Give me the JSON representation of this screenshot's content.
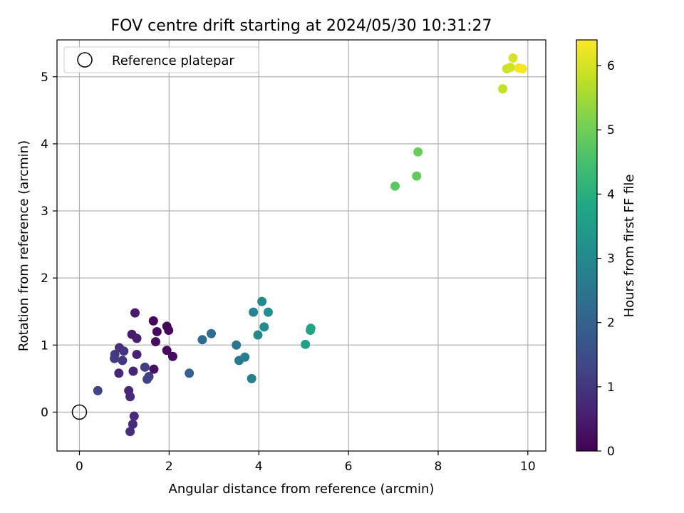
{
  "chart_data": {
    "type": "scatter",
    "title": "FOV centre drift starting at 2024/05/30 10:31:27",
    "xlabel": "Angular distance from reference (arcmin)",
    "ylabel": "Rotation from reference (arcmin)",
    "xlim": [
      -0.5,
      10.4
    ],
    "ylim": [
      -0.58,
      5.55
    ],
    "xticks": [
      0,
      2,
      4,
      6,
      8,
      10
    ],
    "yticks": [
      0,
      1,
      2,
      3,
      4,
      5
    ],
    "grid": true,
    "legend": {
      "position": "top-left",
      "entries": [
        "Reference platepar"
      ]
    },
    "reference_point": {
      "x": 0,
      "y": 0,
      "label": "Reference platepar"
    },
    "colorbar": {
      "label": "Hours from first FF file",
      "colormap": "viridis",
      "range": [
        0,
        6.4
      ],
      "ticks": [
        0,
        1,
        2,
        3,
        4,
        5,
        6
      ]
    },
    "points": [
      {
        "x": 1.65,
        "y": 1.36,
        "h": 0.05
      },
      {
        "x": 1.95,
        "y": 1.28,
        "h": 0.1
      },
      {
        "x": 1.99,
        "y": 1.22,
        "h": 0.12
      },
      {
        "x": 1.73,
        "y": 1.2,
        "h": 0.15
      },
      {
        "x": 1.7,
        "y": 1.05,
        "h": 0.18
      },
      {
        "x": 1.95,
        "y": 0.92,
        "h": 0.2
      },
      {
        "x": 2.08,
        "y": 0.83,
        "h": 0.22
      },
      {
        "x": 1.66,
        "y": 0.64,
        "h": 0.3
      },
      {
        "x": 1.24,
        "y": 1.48,
        "h": 0.45
      },
      {
        "x": 1.17,
        "y": 1.16,
        "h": 0.5
      },
      {
        "x": 1.28,
        "y": 1.1,
        "h": 0.55
      },
      {
        "x": 1.28,
        "y": 0.86,
        "h": 0.6
      },
      {
        "x": 1.2,
        "y": 0.61,
        "h": 0.65
      },
      {
        "x": 0.88,
        "y": 0.58,
        "h": 0.7
      },
      {
        "x": 1.1,
        "y": 0.32,
        "h": 0.72
      },
      {
        "x": 1.13,
        "y": 0.23,
        "h": 0.75
      },
      {
        "x": 1.22,
        "y": -0.06,
        "h": 0.8
      },
      {
        "x": 1.19,
        "y": -0.18,
        "h": 0.82
      },
      {
        "x": 1.13,
        "y": -0.29,
        "h": 0.85
      },
      {
        "x": 0.89,
        "y": 0.96,
        "h": 0.9
      },
      {
        "x": 0.99,
        "y": 0.91,
        "h": 0.95
      },
      {
        "x": 0.96,
        "y": 0.77,
        "h": 1.0
      },
      {
        "x": 0.79,
        "y": 0.86,
        "h": 1.05
      },
      {
        "x": 0.78,
        "y": 0.8,
        "h": 1.1
      },
      {
        "x": 1.46,
        "y": 0.67,
        "h": 1.15
      },
      {
        "x": 1.55,
        "y": 0.53,
        "h": 1.2
      },
      {
        "x": 1.51,
        "y": 0.49,
        "h": 1.25
      },
      {
        "x": 0.41,
        "y": 0.32,
        "h": 1.3
      },
      {
        "x": 2.45,
        "y": 0.58,
        "h": 2.0
      },
      {
        "x": 2.74,
        "y": 1.08,
        "h": 2.2
      },
      {
        "x": 2.94,
        "y": 1.17,
        "h": 2.3
      },
      {
        "x": 3.5,
        "y": 1.0,
        "h": 2.5
      },
      {
        "x": 3.56,
        "y": 0.77,
        "h": 2.6
      },
      {
        "x": 3.69,
        "y": 0.82,
        "h": 2.7
      },
      {
        "x": 3.84,
        "y": 0.5,
        "h": 2.8
      },
      {
        "x": 3.88,
        "y": 1.49,
        "h": 2.9
      },
      {
        "x": 3.98,
        "y": 1.15,
        "h": 3.0
      },
      {
        "x": 4.07,
        "y": 1.65,
        "h": 3.05
      },
      {
        "x": 4.12,
        "y": 1.27,
        "h": 3.1
      },
      {
        "x": 4.21,
        "y": 1.49,
        "h": 3.15
      },
      {
        "x": 5.04,
        "y": 1.01,
        "h": 3.6
      },
      {
        "x": 5.15,
        "y": 1.22,
        "h": 3.7
      },
      {
        "x": 5.16,
        "y": 1.25,
        "h": 3.75
      },
      {
        "x": 7.04,
        "y": 3.37,
        "h": 4.75
      },
      {
        "x": 7.52,
        "y": 3.52,
        "h": 4.85
      },
      {
        "x": 7.55,
        "y": 3.88,
        "h": 4.9
      },
      {
        "x": 9.44,
        "y": 4.82,
        "h": 5.8
      },
      {
        "x": 9.53,
        "y": 5.12,
        "h": 5.9
      },
      {
        "x": 9.61,
        "y": 5.14,
        "h": 5.95
      },
      {
        "x": 9.67,
        "y": 5.28,
        "h": 6.0
      },
      {
        "x": 9.8,
        "y": 5.13,
        "h": 6.25
      },
      {
        "x": 9.88,
        "y": 5.12,
        "h": 6.35
      }
    ]
  }
}
